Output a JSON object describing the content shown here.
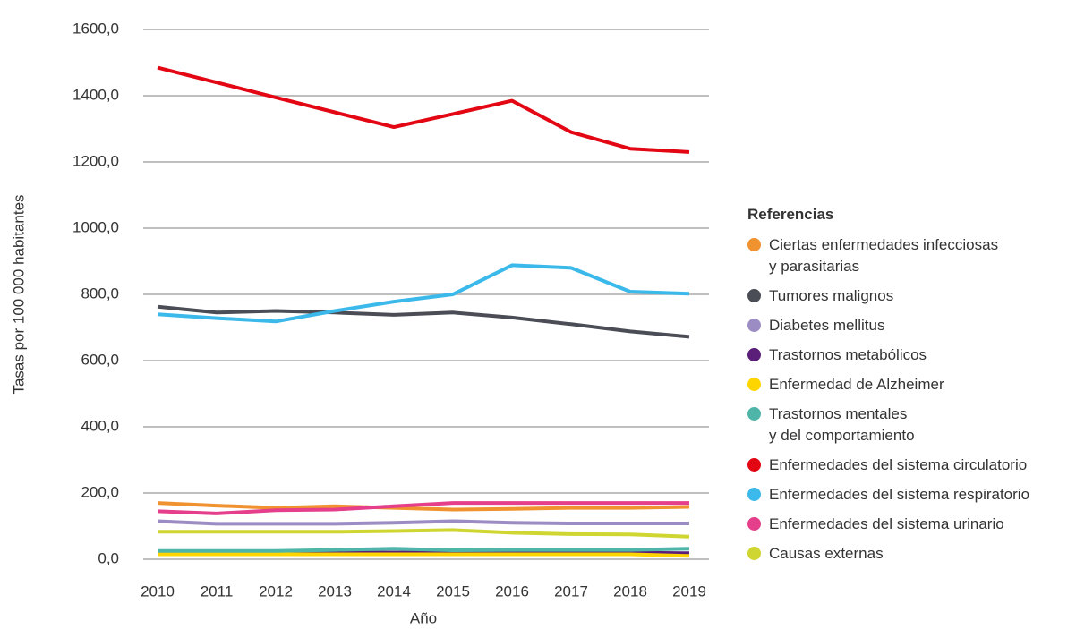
{
  "chart_data": {
    "type": "line",
    "y_label": "Tasas por 100 000 habitantes",
    "x_label": "Año",
    "legend_title": "Referencias",
    "categories": [
      "2010",
      "2011",
      "2012",
      "2013",
      "2014",
      "2015",
      "2016",
      "2017",
      "2018",
      "2019"
    ],
    "ylim": [
      0,
      1600
    ],
    "yticks": [
      {
        "value": 0,
        "label": "0,0"
      },
      {
        "value": 200,
        "label": "200,0"
      },
      {
        "value": 400,
        "label": "400,0"
      },
      {
        "value": 600,
        "label": "600,0"
      },
      {
        "value": 800,
        "label": "800,0"
      },
      {
        "value": 1000,
        "label": "1000,0"
      },
      {
        "value": 1200,
        "label": "1200,0"
      },
      {
        "value": 1400,
        "label": "1400,0"
      },
      {
        "value": 1600,
        "label": "1600,0"
      }
    ],
    "grid": true,
    "legend": "right",
    "series": [
      {
        "name": "Ciertas enfermedades infecciosas\ny parasitarias",
        "color": "#f0922f",
        "values": [
          170,
          162,
          155,
          160,
          155,
          150,
          152,
          155,
          155,
          158
        ]
      },
      {
        "name": "Tumores malignos",
        "color": "#4a4d55",
        "values": [
          763,
          745,
          750,
          745,
          738,
          745,
          730,
          710,
          688,
          672
        ]
      },
      {
        "name": "Diabetes mellitus",
        "color": "#9b8cc4",
        "values": [
          115,
          107,
          107,
          107,
          110,
          115,
          110,
          108,
          108,
          108
        ]
      },
      {
        "name": "Trastornos metabólicos",
        "color": "#5b1f7a",
        "values": [
          18,
          18,
          18,
          20,
          20,
          20,
          20,
          20,
          20,
          18
        ]
      },
      {
        "name": "Enfermedad de Alzheimer",
        "color": "#ffd500",
        "values": [
          15,
          15,
          15,
          15,
          15,
          15,
          15,
          15,
          15,
          10
        ]
      },
      {
        "name": "Trastornos mentales\ny del comportamiento",
        "color": "#4fb5a8",
        "values": [
          25,
          25,
          25,
          28,
          32,
          27,
          28,
          28,
          28,
          32
        ]
      },
      {
        "name": "Enfermedades del sistema circulatorio",
        "color": "#e30613",
        "values": [
          1485,
          1440,
          1395,
          1350,
          1305,
          1345,
          1385,
          1290,
          1240,
          1230
        ]
      },
      {
        "name": "Enfermedades del sistema respiratorio",
        "color": "#3ab9ea",
        "values": [
          740,
          728,
          718,
          750,
          778,
          800,
          888,
          880,
          808,
          802
        ]
      },
      {
        "name": "Enfermedades del sistema urinario",
        "color": "#e53e8a",
        "values": [
          145,
          138,
          148,
          150,
          160,
          170,
          170,
          170,
          170,
          170
        ]
      },
      {
        "name": "Causas externas",
        "color": "#cfd631",
        "values": [
          83,
          83,
          83,
          83,
          85,
          88,
          80,
          76,
          75,
          68
        ]
      }
    ]
  }
}
